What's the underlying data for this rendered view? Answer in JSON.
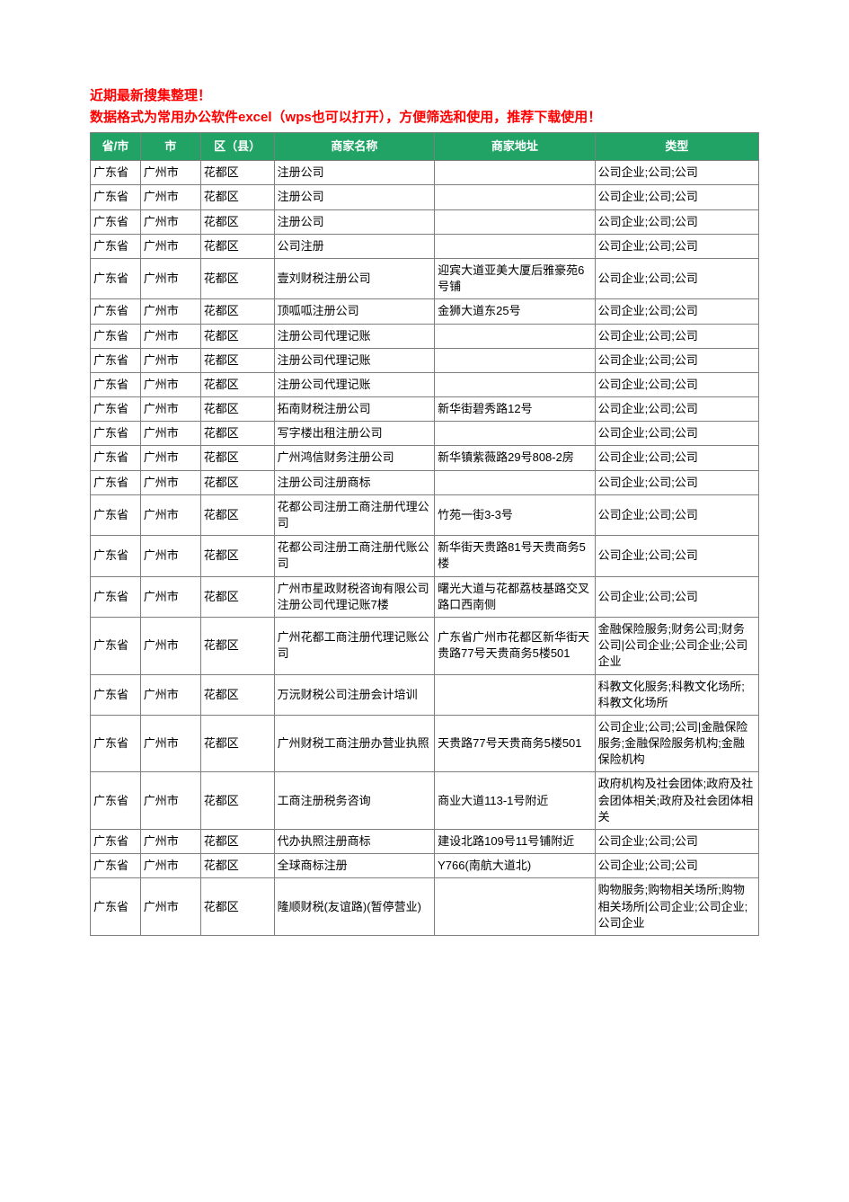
{
  "notice": {
    "line1": "近期最新搜集整理！",
    "line2": "数据格式为常用办公软件excel（wps也可以打开），方便筛选和使用，推荐下载使用！"
  },
  "table": {
    "header_bg": "#21a366",
    "header_fg": "#ffffff",
    "border_color": "#7f7f7f",
    "notice_color": "#ff0000",
    "columns": [
      {
        "key": "province",
        "label": "省/市",
        "width": "7.5%"
      },
      {
        "key": "city",
        "label": "市",
        "width": "9%"
      },
      {
        "key": "district",
        "label": "区（县）",
        "width": "11%"
      },
      {
        "key": "name",
        "label": "商家名称",
        "width": "24%"
      },
      {
        "key": "address",
        "label": "商家地址",
        "width": "24%"
      },
      {
        "key": "type",
        "label": "类型",
        "width": "24.5%"
      }
    ],
    "rows": [
      {
        "province": "广东省",
        "city": "广州市",
        "district": "花都区",
        "name": "注册公司",
        "address": "",
        "type": "公司企业;公司;公司"
      },
      {
        "province": "广东省",
        "city": "广州市",
        "district": "花都区",
        "name": "注册公司",
        "address": "",
        "type": "公司企业;公司;公司"
      },
      {
        "province": "广东省",
        "city": "广州市",
        "district": "花都区",
        "name": "注册公司",
        "address": "",
        "type": "公司企业;公司;公司"
      },
      {
        "province": "广东省",
        "city": "广州市",
        "district": "花都区",
        "name": "公司注册",
        "address": "",
        "type": "公司企业;公司;公司"
      },
      {
        "province": "广东省",
        "city": "广州市",
        "district": "花都区",
        "name": "壹刘财税注册公司",
        "address": "迎宾大道亚美大厦后雅豪苑6号铺",
        "type": "公司企业;公司;公司"
      },
      {
        "province": "广东省",
        "city": "广州市",
        "district": "花都区",
        "name": "顶呱呱注册公司",
        "address": "金狮大道东25号",
        "type": "公司企业;公司;公司"
      },
      {
        "province": "广东省",
        "city": "广州市",
        "district": "花都区",
        "name": "注册公司代理记账",
        "address": "",
        "type": "公司企业;公司;公司"
      },
      {
        "province": "广东省",
        "city": "广州市",
        "district": "花都区",
        "name": "注册公司代理记账",
        "address": "",
        "type": "公司企业;公司;公司"
      },
      {
        "province": "广东省",
        "city": "广州市",
        "district": "花都区",
        "name": "注册公司代理记账",
        "address": "",
        "type": "公司企业;公司;公司"
      },
      {
        "province": "广东省",
        "city": "广州市",
        "district": "花都区",
        "name": "拓南财税注册公司",
        "address": "新华街碧秀路12号",
        "type": "公司企业;公司;公司"
      },
      {
        "province": "广东省",
        "city": "广州市",
        "district": "花都区",
        "name": "写字楼出租注册公司",
        "address": "",
        "type": "公司企业;公司;公司"
      },
      {
        "province": "广东省",
        "city": "广州市",
        "district": "花都区",
        "name": "广州鸿信财务注册公司",
        "address": "新华镇紫薇路29号808-2房",
        "type": "公司企业;公司;公司"
      },
      {
        "province": "广东省",
        "city": "广州市",
        "district": "花都区",
        "name": "注册公司注册商标",
        "address": "",
        "type": "公司企业;公司;公司"
      },
      {
        "province": "广东省",
        "city": "广州市",
        "district": "花都区",
        "name": "花都公司注册工商注册代理公司",
        "address": "竹苑一街3-3号",
        "type": "公司企业;公司;公司"
      },
      {
        "province": "广东省",
        "city": "广州市",
        "district": "花都区",
        "name": "花都公司注册工商注册代账公司",
        "address": "新华街天贵路81号天贵商务5楼",
        "type": "公司企业;公司;公司"
      },
      {
        "province": "广东省",
        "city": "广州市",
        "district": "花都区",
        "name": "广州市星政财税咨询有限公司注册公司代理记账7楼",
        "address": "曙光大道与花都荔枝基路交叉路口西南侧",
        "type": "公司企业;公司;公司"
      },
      {
        "province": "广东省",
        "city": "广州市",
        "district": "花都区",
        "name": "广州花都工商注册代理记账公司",
        "address": "广东省广州市花都区新华街天贵路77号天贵商务5楼501",
        "type": "金融保险服务;财务公司;财务公司|公司企业;公司企业;公司企业"
      },
      {
        "province": "广东省",
        "city": "广州市",
        "district": "花都区",
        "name": "万沅财税公司注册会计培训",
        "address": "",
        "type": "科教文化服务;科教文化场所;科教文化场所"
      },
      {
        "province": "广东省",
        "city": "广州市",
        "district": "花都区",
        "name": "广州财税工商注册办营业执照",
        "address": "天贵路77号天贵商务5楼501",
        "type": "公司企业;公司;公司|金融保险服务;金融保险服务机构;金融保险机构"
      },
      {
        "province": "广东省",
        "city": "广州市",
        "district": "花都区",
        "name": "工商注册税务咨询",
        "address": "商业大道113-1号附近",
        "type": "政府机构及社会团体;政府及社会团体相关;政府及社会团体相关"
      },
      {
        "province": "广东省",
        "city": "广州市",
        "district": "花都区",
        "name": "代办执照注册商标",
        "address": "建设北路109号11号铺附近",
        "type": "公司企业;公司;公司"
      },
      {
        "province": "广东省",
        "city": "广州市",
        "district": "花都区",
        "name": "全球商标注册",
        "address": "Y766(南航大道北)",
        "type": "公司企业;公司;公司"
      },
      {
        "province": "广东省",
        "city": "广州市",
        "district": "花都区",
        "name": "隆顺财税(友谊路)(暂停营业)",
        "address": "",
        "type": "购物服务;购物相关场所;购物相关场所|公司企业;公司企业;公司企业"
      }
    ]
  }
}
